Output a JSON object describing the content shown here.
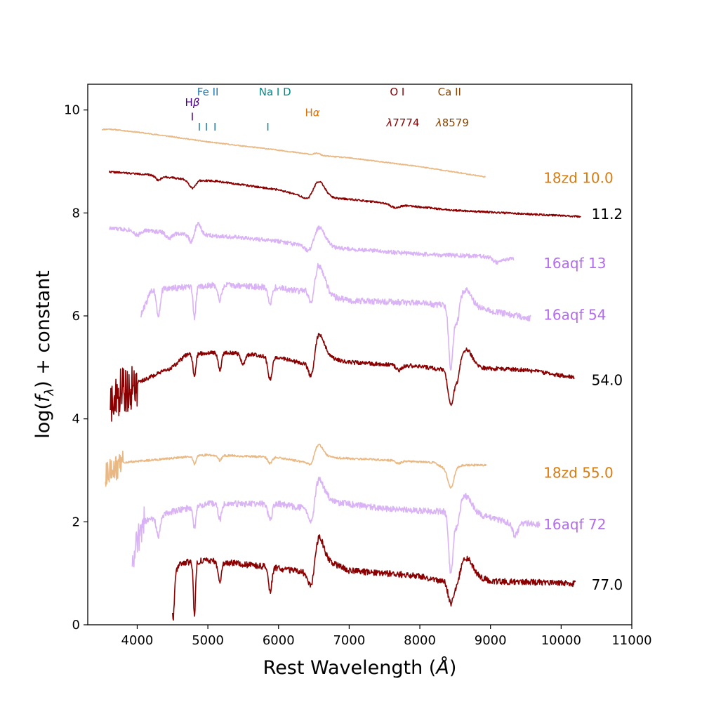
{
  "chart_data": {
    "type": "line",
    "title": "",
    "xlabel": "Rest Wavelength (Å)",
    "ylabel_parts": [
      "log(",
      "f",
      "λ",
      ")  + constant"
    ],
    "xlim": [
      3300,
      11000
    ],
    "ylim": [
      0,
      10.5
    ],
    "xticks": [
      4000,
      5000,
      6000,
      7000,
      8000,
      9000,
      10000,
      11000
    ],
    "yticks": [
      0,
      2,
      4,
      6,
      8,
      10
    ],
    "grid": false,
    "line_identifications": [
      {
        "id": "hbeta",
        "label_parts": [
          "H",
          "β"
        ],
        "x": 4780,
        "label_y": 10.08,
        "color": "#4b0082",
        "ticks": [
          {
            "x": 4780,
            "y": 9.8
          }
        ]
      },
      {
        "id": "fe2",
        "label_parts": [
          "Fe II"
        ],
        "x": 5000,
        "label_y": 10.28,
        "color": "#1f77b4",
        "ticks": [
          {
            "x": 4880,
            "y": 9.6
          },
          {
            "x": 4980,
            "y": 9.6
          },
          {
            "x": 5100,
            "y": 9.6
          }
        ]
      },
      {
        "id": "na1d",
        "label_parts": [
          "Na I D"
        ],
        "x": 5950,
        "label_y": 10.28,
        "color": "#008b8b",
        "ticks": [
          {
            "x": 5850,
            "y": 9.6
          }
        ]
      },
      {
        "id": "halpha",
        "label_parts": [
          "H",
          "α"
        ],
        "x": 6480,
        "label_y": 9.88,
        "color": "#e07000",
        "ticks": []
      },
      {
        "id": "o1",
        "label_parts": [
          "O I"
        ],
        "x": 7680,
        "label_y": 10.28,
        "color": "#8b0000",
        "ticks": []
      },
      {
        "id": "o1wave",
        "label_parts": [
          "λ",
          "7774"
        ],
        "x": 7760,
        "label_y": 9.68,
        "color": "#8b0000",
        "ticks": []
      },
      {
        "id": "ca2",
        "label_parts": [
          "Ca II"
        ],
        "x": 8420,
        "label_y": 10.28,
        "color": "#8b4500",
        "ticks": []
      },
      {
        "id": "ca2wave",
        "label_parts": [
          "λ",
          "8579"
        ],
        "x": 8460,
        "label_y": 9.68,
        "color": "#8b4500",
        "ticks": []
      }
    ],
    "series": [
      {
        "name": "18zd 10.0",
        "label": "18zd 10.0",
        "label_x": 9750,
        "label_y": 8.68,
        "color": "#eab883",
        "label_color": "#d97b10",
        "x_start": 3500,
        "x_end": 8930,
        "noise": 0.01,
        "low_noise_amp": 0,
        "low_noise_end": 3500,
        "seed": 11,
        "nodes": [
          [
            3500,
            9.62
          ],
          [
            3600,
            9.63
          ],
          [
            4000,
            9.57
          ],
          [
            4500,
            9.48
          ],
          [
            5000,
            9.38
          ],
          [
            6000,
            9.22
          ],
          [
            6550,
            9.12
          ],
          [
            7000,
            9.07
          ],
          [
            8000,
            8.9
          ],
          [
            8930,
            8.7
          ]
        ],
        "features": [
          [
            6550,
            0.04,
            40
          ]
        ]
      },
      {
        "name": "11.2",
        "label": "11.2",
        "label_x": 10430,
        "label_y": 7.98,
        "color": "#8b0000",
        "label_color": "#000000",
        "x_start": 3600,
        "x_end": 10280,
        "noise": 0.018,
        "low_noise_amp": 0,
        "low_noise_end": 3600,
        "seed": 22,
        "nodes": [
          [
            3600,
            8.8
          ],
          [
            4100,
            8.75
          ],
          [
            4700,
            8.65
          ],
          [
            5100,
            8.62
          ],
          [
            6000,
            8.45
          ],
          [
            6400,
            8.3
          ],
          [
            7000,
            8.27
          ],
          [
            7600,
            8.17
          ],
          [
            8500,
            8.05
          ],
          [
            9500,
            7.98
          ],
          [
            10280,
            7.93
          ]
        ],
        "features": [
          [
            4780,
            -0.16,
            45
          ],
          [
            4300,
            -0.08,
            35
          ],
          [
            6450,
            -0.12,
            70
          ],
          [
            6560,
            0.35,
            90
          ],
          [
            7650,
            -0.06,
            60
          ]
        ]
      },
      {
        "name": "16aqf 13",
        "label": "16aqf 13",
        "label_x": 9750,
        "label_y": 7.02,
        "color": "#d9b3f5",
        "label_color": "#b36bf0",
        "x_start": 3600,
        "x_end": 9330,
        "noise": 0.04,
        "low_noise_amp": 0,
        "low_noise_end": 3600,
        "seed": 33,
        "nodes": [
          [
            3600,
            7.7
          ],
          [
            4200,
            7.65
          ],
          [
            4600,
            7.6
          ],
          [
            5200,
            7.55
          ],
          [
            6000,
            7.45
          ],
          [
            6400,
            7.35
          ],
          [
            7000,
            7.3
          ],
          [
            8000,
            7.2
          ],
          [
            9000,
            7.15
          ],
          [
            9330,
            7.1
          ]
        ],
        "features": [
          [
            4780,
            -0.2,
            40
          ],
          [
            4850,
            0.25,
            45
          ],
          [
            6450,
            -0.2,
            60
          ],
          [
            6570,
            0.4,
            90
          ],
          [
            4000,
            -0.1,
            40
          ],
          [
            4450,
            -0.12,
            40
          ],
          [
            9100,
            -0.1,
            60
          ]
        ]
      },
      {
        "name": "16aqf 54",
        "label": "16aqf 54",
        "label_x": 9750,
        "label_y": 6.02,
        "color": "#d9b3f5",
        "label_color": "#b36bf0",
        "x_start": 4050,
        "x_end": 9570,
        "noise": 0.06,
        "low_noise_amp": 0,
        "low_noise_end": 4050,
        "seed": 44,
        "nodes": [
          [
            4050,
            6.0
          ],
          [
            4200,
            6.5
          ],
          [
            4600,
            6.55
          ],
          [
            5200,
            6.6
          ],
          [
            6000,
            6.55
          ],
          [
            6400,
            6.45
          ],
          [
            7000,
            6.3
          ],
          [
            8000,
            6.25
          ],
          [
            8350,
            6.2
          ],
          [
            8700,
            6.2
          ],
          [
            9000,
            6.1
          ],
          [
            9570,
            5.95
          ]
        ],
        "features": [
          [
            4300,
            -0.5,
            25
          ],
          [
            4810,
            -0.6,
            20
          ],
          [
            5170,
            -0.3,
            25
          ],
          [
            5880,
            -0.3,
            30
          ],
          [
            6470,
            -0.55,
            40
          ],
          [
            6560,
            0.6,
            90
          ],
          [
            8440,
            -1.25,
            30
          ],
          [
            8530,
            -0.4,
            30
          ],
          [
            8650,
            0.3,
            80
          ]
        ]
      },
      {
        "name": "54.0",
        "label": "54.0",
        "label_x": 10430,
        "label_y": 4.75,
        "color": "#8b0000",
        "label_color": "#000000",
        "x_start": 3620,
        "x_end": 10190,
        "noise": 0.04,
        "low_noise_amp": 0.45,
        "low_noise_end": 4000,
        "seed": 55,
        "nodes": [
          [
            3620,
            4.4
          ],
          [
            4000,
            4.7
          ],
          [
            4500,
            5.0
          ],
          [
            4700,
            5.25
          ],
          [
            5200,
            5.3
          ],
          [
            6000,
            5.2
          ],
          [
            6400,
            5.05
          ],
          [
            6650,
            5.2
          ],
          [
            7000,
            5.1
          ],
          [
            8000,
            5.02
          ],
          [
            8350,
            4.95
          ],
          [
            8700,
            5.0
          ],
          [
            9500,
            4.95
          ],
          [
            10190,
            4.8
          ]
        ],
        "features": [
          [
            4810,
            -0.45,
            20
          ],
          [
            5170,
            -0.35,
            25
          ],
          [
            5500,
            -0.2,
            30
          ],
          [
            5880,
            -0.45,
            30
          ],
          [
            6470,
            -0.5,
            40
          ],
          [
            6560,
            0.5,
            80
          ],
          [
            8440,
            -0.7,
            40
          ],
          [
            8530,
            -0.3,
            30
          ],
          [
            8660,
            0.35,
            80
          ],
          [
            7700,
            -0.1,
            40
          ]
        ]
      },
      {
        "name": "18zd 55.0",
        "label": "18zd 55.0",
        "label_x": 9750,
        "label_y": 2.95,
        "color": "#eab883",
        "label_color": "#d97b10",
        "x_start": 3550,
        "x_end": 8940,
        "noise": 0.02,
        "low_noise_amp": 0.25,
        "low_noise_end": 3800,
        "seed": 66,
        "nodes": [
          [
            3550,
            2.9
          ],
          [
            3800,
            3.15
          ],
          [
            4200,
            3.2
          ],
          [
            4600,
            3.25
          ],
          [
            5000,
            3.3
          ],
          [
            6000,
            3.25
          ],
          [
            6400,
            3.15
          ],
          [
            6700,
            3.25
          ],
          [
            7500,
            3.2
          ],
          [
            8200,
            3.15
          ],
          [
            8400,
            3.0
          ],
          [
            8600,
            3.1
          ],
          [
            8940,
            3.1
          ]
        ],
        "features": [
          [
            4810,
            -0.15,
            20
          ],
          [
            5170,
            -0.1,
            25
          ],
          [
            5880,
            -0.12,
            30
          ],
          [
            6470,
            -0.15,
            40
          ],
          [
            6560,
            0.3,
            70
          ],
          [
            8440,
            -0.35,
            40
          ],
          [
            7700,
            -0.05,
            40
          ]
        ]
      },
      {
        "name": "16aqf 72",
        "label": "16aqf 72",
        "label_x": 9750,
        "label_y": 1.95,
        "color": "#d9b3f5",
        "label_color": "#b36bf0",
        "x_start": 3930,
        "x_end": 9700,
        "noise": 0.06,
        "low_noise_amp": 0.3,
        "low_noise_end": 4100,
        "seed": 77,
        "nodes": [
          [
            3930,
            1.3
          ],
          [
            4100,
            2.0
          ],
          [
            4500,
            2.2
          ],
          [
            5000,
            2.35
          ],
          [
            6000,
            2.35
          ],
          [
            6400,
            2.25
          ],
          [
            6700,
            2.4
          ],
          [
            7500,
            2.25
          ],
          [
            8300,
            2.2
          ],
          [
            8700,
            2.2
          ],
          [
            9200,
            2.0
          ],
          [
            9700,
            1.95
          ]
        ],
        "features": [
          [
            4300,
            -0.4,
            25
          ],
          [
            4810,
            -0.4,
            20
          ],
          [
            5170,
            -0.3,
            25
          ],
          [
            5880,
            -0.3,
            30
          ],
          [
            6470,
            -0.55,
            40
          ],
          [
            6560,
            0.5,
            80
          ],
          [
            8440,
            -1.25,
            30
          ],
          [
            8530,
            -0.4,
            30
          ],
          [
            8650,
            0.3,
            80
          ],
          [
            9350,
            -0.25,
            40
          ]
        ]
      },
      {
        "name": "77.0",
        "label": "77.0",
        "label_x": 10430,
        "label_y": 0.78,
        "color": "#8b0000",
        "label_color": "#000000",
        "x_start": 4500,
        "x_end": 10200,
        "noise": 0.06,
        "low_noise_amp": 0,
        "low_noise_end": 4500,
        "seed": 88,
        "nodes": [
          [
            4500,
            0.9
          ],
          [
            4600,
            1.2
          ],
          [
            5000,
            1.25
          ],
          [
            6000,
            1.1
          ],
          [
            6400,
            1.0
          ],
          [
            6600,
            1.3
          ],
          [
            7000,
            1.05
          ],
          [
            8000,
            0.95
          ],
          [
            8300,
            0.85
          ],
          [
            8700,
            1.0
          ],
          [
            9000,
            0.85
          ],
          [
            10200,
            0.8
          ]
        ],
        "features": [
          [
            4510,
            -0.8,
            15
          ],
          [
            4810,
            -1.05,
            15
          ],
          [
            5170,
            -0.4,
            25
          ],
          [
            5880,
            -0.5,
            25
          ],
          [
            6470,
            -0.5,
            40
          ],
          [
            6560,
            0.45,
            70
          ],
          [
            8440,
            -0.5,
            40
          ],
          [
            8530,
            -0.2,
            30
          ],
          [
            8660,
            0.3,
            80
          ]
        ]
      }
    ]
  }
}
